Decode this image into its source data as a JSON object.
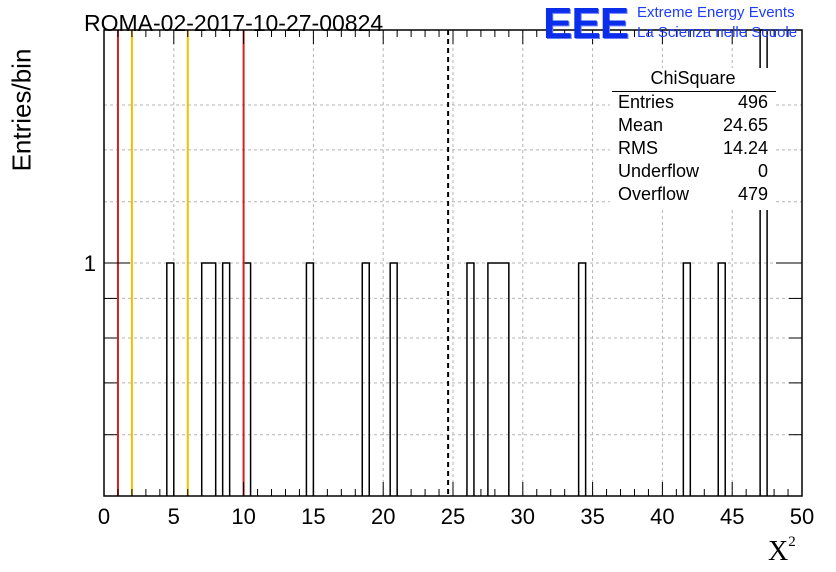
{
  "chart_data": {
    "type": "histogram",
    "title": "ROMA-02-2017-10-27-00824",
    "xlabel": "X",
    "xlabel_superscript": "2",
    "ylabel": "Entries/bin",
    "xlim": [
      0,
      50
    ],
    "ylim_log": [
      0.5,
      2.0
    ],
    "log_y": true,
    "grid": true,
    "x_ticks": [
      "0",
      "5",
      "10",
      "15",
      "20",
      "25",
      "30",
      "35",
      "40",
      "45",
      "50"
    ],
    "y_ticks": [
      "1"
    ],
    "bins": [
      {
        "x0": 4.5,
        "x1": 5.0,
        "count": 1
      },
      {
        "x0": 7.0,
        "x1": 8.0,
        "count": 1
      },
      {
        "x0": 8.5,
        "x1": 9.0,
        "count": 1
      },
      {
        "x0": 10.0,
        "x1": 10.5,
        "count": 1
      },
      {
        "x0": 14.5,
        "x1": 15.0,
        "count": 1
      },
      {
        "x0": 18.5,
        "x1": 19.0,
        "count": 1
      },
      {
        "x0": 20.5,
        "x1": 21.0,
        "count": 1
      },
      {
        "x0": 26.0,
        "x1": 26.5,
        "count": 1
      },
      {
        "x0": 27.5,
        "x1": 29.0,
        "count": 1
      },
      {
        "x0": 34.0,
        "x1": 34.5,
        "count": 1
      },
      {
        "x0": 41.5,
        "x1": 42.0,
        "count": 1
      },
      {
        "x0": 44.0,
        "x1": 44.5,
        "count": 1
      },
      {
        "x0": 47.0,
        "x1": 47.5,
        "count": 2
      }
    ],
    "reference_lines": [
      {
        "x": 1.0,
        "color": "#d62020",
        "style": "solid"
      },
      {
        "x": 2.0,
        "color": "#f2c200",
        "style": "solid"
      },
      {
        "x": 6.0,
        "color": "#f2c200",
        "style": "solid"
      },
      {
        "x": 10.0,
        "color": "#d62020",
        "style": "solid"
      },
      {
        "x": 24.65,
        "color": "#000000",
        "style": "dashed"
      }
    ],
    "stats": {
      "name": "ChiSquare",
      "rows": [
        {
          "key": "Entries",
          "value": "496"
        },
        {
          "key": "Mean",
          "value": "24.65"
        },
        {
          "key": "RMS",
          "value": "14.24"
        },
        {
          "key": "Underflow",
          "value": "0"
        },
        {
          "key": "Overflow",
          "value": "479"
        }
      ]
    }
  },
  "logo": {
    "mark": "EEE",
    "line1": "Extreme Energy Events",
    "line2": "La Scienza nelle Scuole"
  },
  "colors": {
    "logo_blue": "#1e3cff",
    "red": "#d62020",
    "yellow": "#f2c200",
    "grid": "#b4b4b4"
  }
}
